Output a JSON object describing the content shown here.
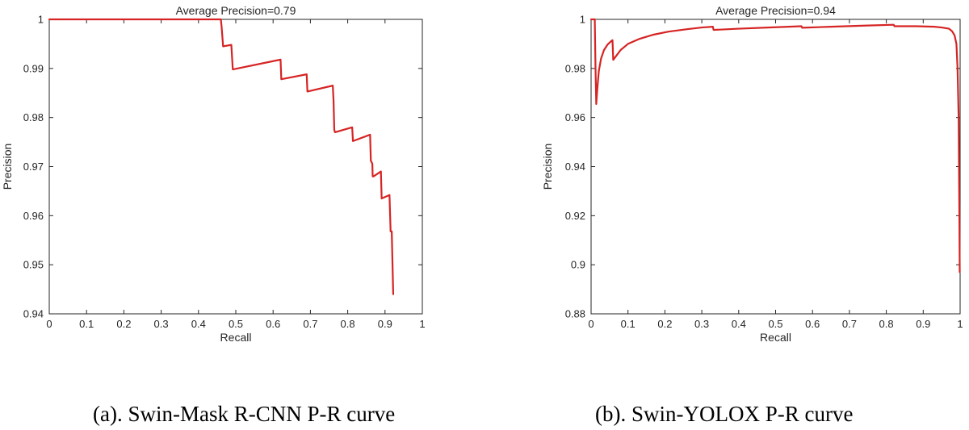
{
  "captions": {
    "a": "(a). Swin-Mask R-CNN P-R curve",
    "b": "(b). Swin-YOLOX P-R curve"
  },
  "colors": {
    "curve": "#d62424",
    "axis": "#262626",
    "background": "#ffffff"
  },
  "chart_data": [
    {
      "type": "line",
      "title": "Average Precision=0.79",
      "xlabel": "Recall",
      "ylabel": "Precision",
      "xlim": [
        0,
        1
      ],
      "ylim": [
        0.94,
        1
      ],
      "xticks": [
        0,
        0.1,
        0.2,
        0.3,
        0.4,
        0.5,
        0.6,
        0.7,
        0.8,
        0.9,
        1
      ],
      "xtick_labels": [
        "0",
        "0.1",
        "0.2",
        "0.3",
        "0.4",
        "0.5",
        "0.6",
        "0.7",
        "0.8",
        "0.9",
        "1"
      ],
      "yticks": [
        0.94,
        0.95,
        0.96,
        0.97,
        0.98,
        0.99,
        1
      ],
      "ytick_labels": [
        "0.94",
        "0.95",
        "0.96",
        "0.97",
        "0.98",
        "0.99",
        "1"
      ],
      "grid": false,
      "series": [
        {
          "x": [
            0,
            0.46,
            0.462,
            0.466,
            0.488,
            0.492,
            0.62,
            0.622,
            0.69,
            0.692,
            0.76,
            0.762,
            0.764,
            0.766,
            0.812,
            0.814,
            0.86,
            0.862,
            0.866,
            0.867,
            0.869,
            0.889,
            0.891,
            0.912,
            0.915,
            0.918,
            0.922
          ],
          "y": [
            1.0,
            1.0,
            0.9985,
            0.9945,
            0.9948,
            0.9898,
            0.9918,
            0.9878,
            0.9888,
            0.9853,
            0.9865,
            0.9835,
            0.9775,
            0.977,
            0.978,
            0.9752,
            0.9765,
            0.9712,
            0.9706,
            0.968,
            0.968,
            0.969,
            0.9635,
            0.9642,
            0.9568,
            0.9568,
            0.944
          ]
        }
      ]
    },
    {
      "type": "line",
      "title": "Average Precision=0.94",
      "xlabel": "Recall",
      "ylabel": "Precision",
      "xlim": [
        0,
        1
      ],
      "ylim": [
        0.88,
        1
      ],
      "xticks": [
        0,
        0.1,
        0.2,
        0.3,
        0.4,
        0.5,
        0.6,
        0.7,
        0.8,
        0.9,
        1
      ],
      "xtick_labels": [
        "0",
        "0.1",
        "0.2",
        "0.3",
        "0.4",
        "0.5",
        "0.6",
        "0.7",
        "0.8",
        "0.9",
        "1"
      ],
      "yticks": [
        0.88,
        0.9,
        0.92,
        0.94,
        0.96,
        0.98,
        1
      ],
      "ytick_labels": [
        "0.88",
        "0.9",
        "0.92",
        "0.94",
        "0.96",
        "0.98",
        "1"
      ],
      "grid": false,
      "series": [
        {
          "x": [
            0,
            0.01,
            0.012,
            0.014,
            0.017,
            0.021,
            0.027,
            0.035,
            0.045,
            0.055,
            0.058,
            0.06,
            0.08,
            0.1,
            0.13,
            0.17,
            0.21,
            0.26,
            0.3,
            0.33,
            0.332,
            0.4,
            0.5,
            0.57,
            0.572,
            0.65,
            0.75,
            0.82,
            0.822,
            0.88,
            0.93,
            0.95,
            0.97,
            0.978,
            0.985,
            0.99,
            0.993,
            0.996,
            0.998,
            0.999
          ],
          "y": [
            1.0,
            1.0,
            0.98,
            0.9655,
            0.972,
            0.979,
            0.984,
            0.9875,
            0.9898,
            0.9912,
            0.9915,
            0.9835,
            0.9875,
            0.99,
            0.992,
            0.9938,
            0.995,
            0.996,
            0.9967,
            0.997,
            0.9957,
            0.9962,
            0.9968,
            0.9972,
            0.9966,
            0.997,
            0.9975,
            0.9978,
            0.9972,
            0.9972,
            0.997,
            0.9967,
            0.9962,
            0.9952,
            0.9935,
            0.99,
            0.98,
            0.96,
            0.92,
            0.897
          ]
        }
      ]
    }
  ]
}
